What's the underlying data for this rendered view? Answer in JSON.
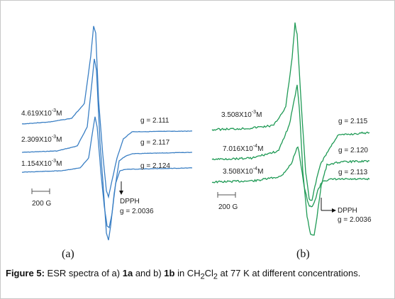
{
  "chart_data": [
    {
      "panel": "(a)",
      "type": "line",
      "color": "#3a7fc4",
      "scale_bar": "200 G",
      "dpph": {
        "label": "DPPH",
        "g": "g = 2.0036"
      },
      "series": [
        {
          "conc": "4.619X10",
          "exp": "-3",
          "unit": "M",
          "g": "g = 2.111"
        },
        {
          "conc": "2.309X10",
          "exp": "-3",
          "unit": "M",
          "g": "g = 2.117"
        },
        {
          "conc": "1.154X10",
          "exp": "-3",
          "unit": "M",
          "g": "g = 2.124"
        }
      ]
    },
    {
      "panel": "(b)",
      "type": "line",
      "color": "#1f9a55",
      "scale_bar": "200 G",
      "dpph": {
        "label": "DPPH",
        "g": "g = 2.0036"
      },
      "series": [
        {
          "conc": "3.508X10",
          "exp": "-3",
          "unit": "M",
          "g": "g = 2.115"
        },
        {
          "conc": "7.016X10",
          "exp": "-4",
          "unit": "M",
          "g": "g = 2.120"
        },
        {
          "conc": "3.508X10",
          "exp": "-4",
          "unit": "M",
          "g": "g = 2.113"
        }
      ]
    }
  ],
  "caption": {
    "figure_label": "Figure 5:",
    "t1": " ESR spectra of a) ",
    "c1": "1a",
    "t2": " and b) ",
    "c2": "1b",
    "t3": " in CH",
    "sub1": "2",
    "t4": "Cl",
    "sub2": "2",
    "t5": " at 77 K at different concentrations."
  }
}
